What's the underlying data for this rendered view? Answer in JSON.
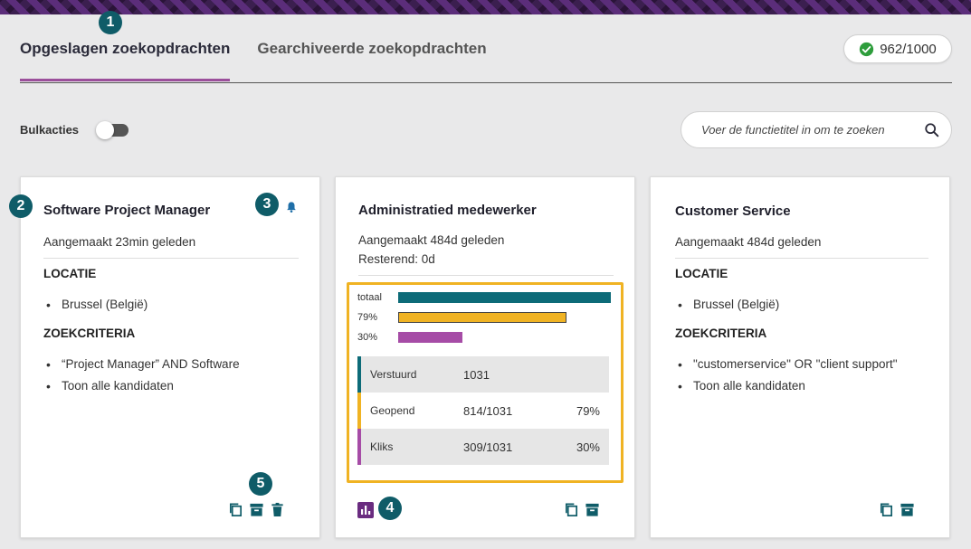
{
  "tabs": [
    {
      "label": "Opgeslagen zoekopdrachten",
      "active": true
    },
    {
      "label": "Gearchiveerde zoekopdrachten",
      "active": false
    }
  ],
  "quota": {
    "value": "962/1000",
    "icon": "check-circle-icon",
    "color": "#2e9d3c"
  },
  "bulk": {
    "label": "Bulkacties",
    "enabled": false
  },
  "search": {
    "placeholder": "Voer de functietitel in om te zoeken",
    "value": ""
  },
  "badges": [
    "1",
    "2",
    "3",
    "4",
    "5"
  ],
  "colors": {
    "accent": "#9b4f9b",
    "badge": "#0f5c68",
    "highlight": "#f0b323",
    "teal": "#0d6b78",
    "orange": "#f0b323",
    "purple": "#a64ca6"
  },
  "cards": [
    {
      "title": "Software Project Manager",
      "created": "Aangemaakt 23min geleden",
      "location_label": "LOCATIE",
      "locations": [
        "Brussel (België)"
      ],
      "criteria_label": "ZOEKCRITERIA",
      "criteria": [
        "“Project Manager” AND Software",
        "Toon alle kandidaten"
      ]
    },
    {
      "title": "Administratied medewerker",
      "created": "Aangemaakt 484d geleden",
      "remaining": "Resterend: 0d",
      "bars": [
        {
          "label": "totaal",
          "fraction": 1.0,
          "color": "#0d6b78"
        },
        {
          "label": "79%",
          "fraction": 0.79,
          "color": "#f0b323"
        },
        {
          "label": "30%",
          "fraction": 0.3,
          "color": "#a64ca6"
        }
      ],
      "stats": [
        {
          "name": "Verstuurd",
          "value": "1031",
          "pct": "",
          "color": "#0d6b78"
        },
        {
          "name": "Geopend",
          "value": "814/1031",
          "pct": "79%",
          "color": "#f0b323"
        },
        {
          "name": "Kliks",
          "value": "309/1031",
          "pct": "30%",
          "color": "#a64ca6"
        }
      ]
    },
    {
      "title": "Customer Service",
      "created": "Aangemaakt 484d geleden",
      "location_label": "LOCATIE",
      "locations": [
        "Brussel (België)"
      ],
      "criteria_label": "ZOEKCRITERIA",
      "criteria": [
        "\"customerservice\" OR \"client support\"",
        "Toon alle kandidaten"
      ]
    }
  ]
}
